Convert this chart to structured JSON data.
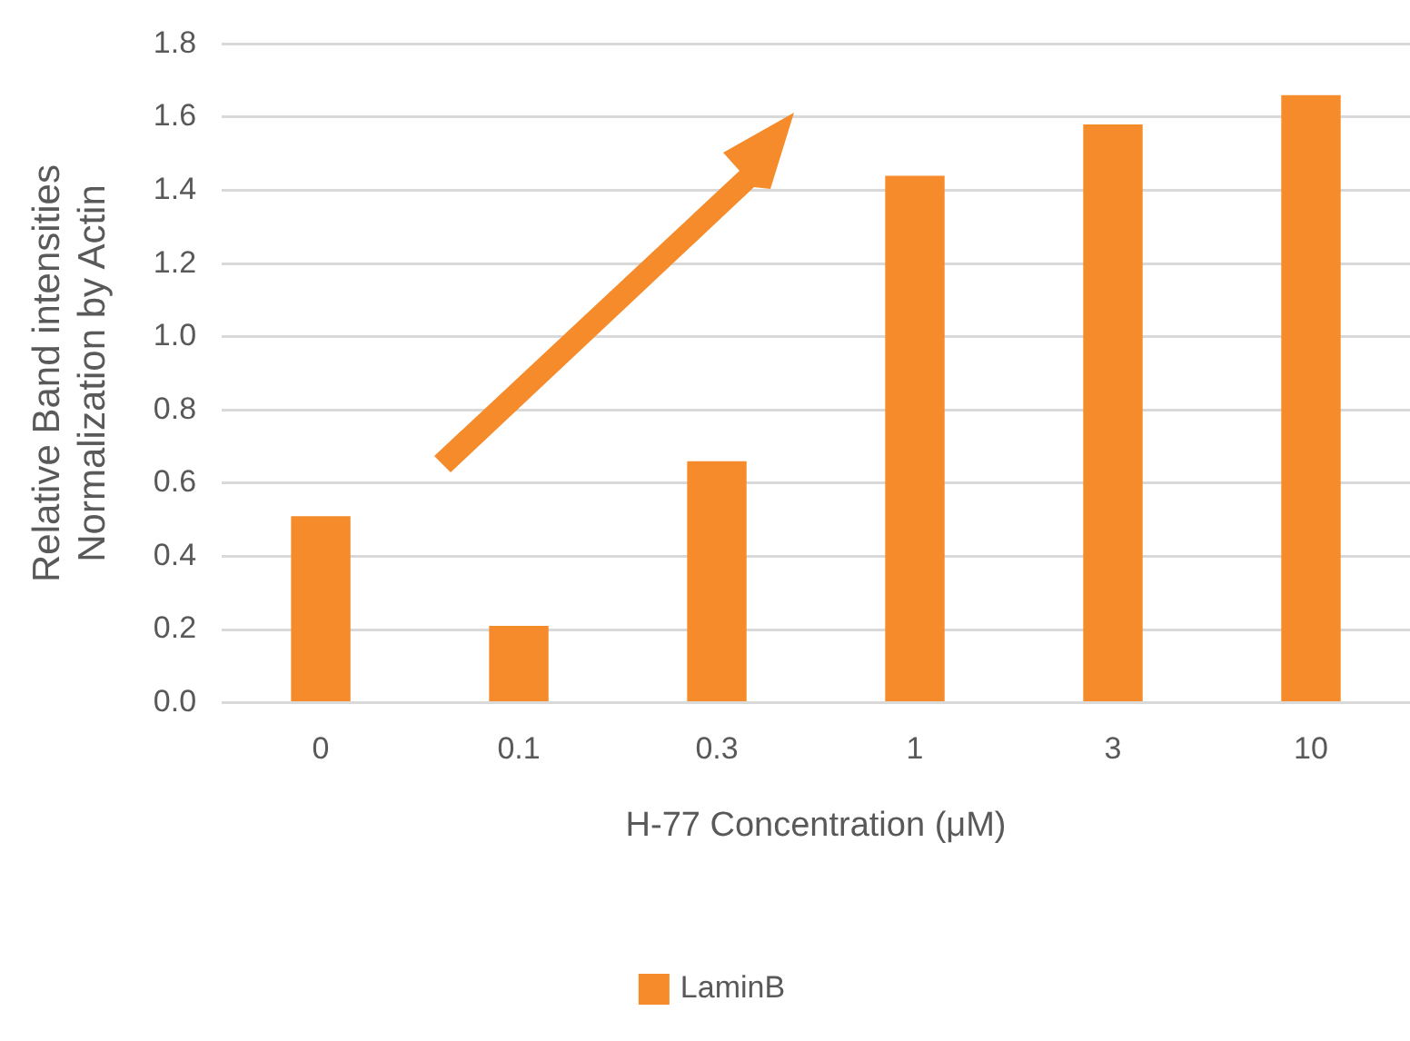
{
  "chart_data": {
    "type": "bar",
    "xlabel": "H-77 Concentration (μM)",
    "ylabel": "Relative Band intensities\nNormalization by Actin",
    "categories": [
      "0",
      "0.1",
      "0.3",
      "1",
      "3",
      "10"
    ],
    "series": [
      {
        "name": "LaminB",
        "color": "#f58b2a",
        "values": [
          0.51,
          0.21,
          0.66,
          1.44,
          1.58,
          1.66
        ]
      }
    ],
    "ylim": [
      0,
      1.8
    ],
    "yticks": [
      {
        "value": 0,
        "label": "0.0"
      },
      {
        "value": 0.2,
        "label": "0.2"
      },
      {
        "value": 0.4,
        "label": "0.4"
      },
      {
        "value": 0.6,
        "label": "0.6"
      },
      {
        "value": 0.8,
        "label": "0.8"
      },
      {
        "value": 1,
        "label": "1.0"
      },
      {
        "value": 1.2,
        "label": "1.2"
      },
      {
        "value": 1.4,
        "label": "1.4"
      },
      {
        "value": 1.6,
        "label": "1.6"
      },
      {
        "value": 1.8,
        "label": "1.8"
      }
    ],
    "grid": "y",
    "legend": "bottom"
  }
}
